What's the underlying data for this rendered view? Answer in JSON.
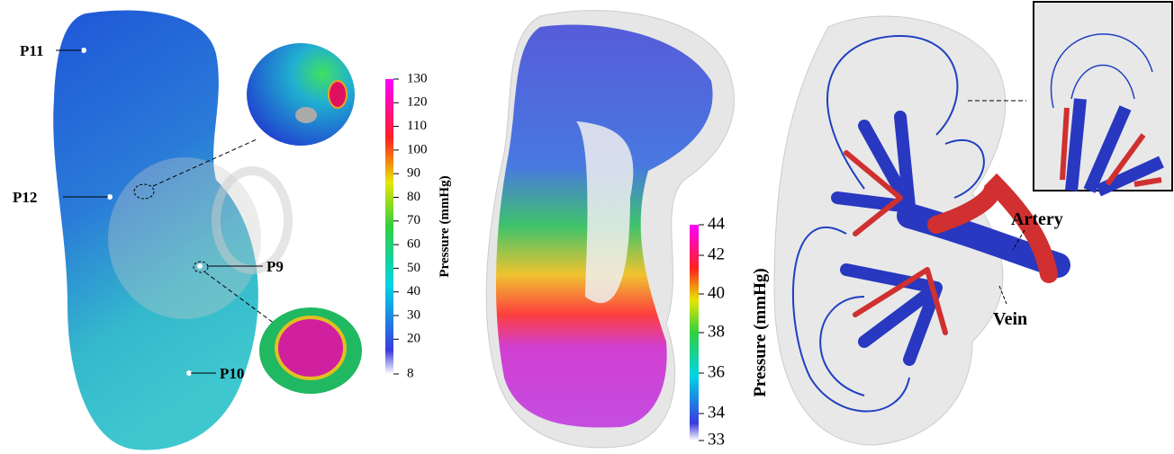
{
  "left_panel": {
    "points": [
      "P11",
      "P12",
      "P9",
      "P10"
    ]
  },
  "colorbar_1": {
    "title": "Pressure (mmHg)",
    "ticks": [
      130,
      120,
      110,
      100,
      90,
      80,
      70,
      60,
      50,
      40,
      30,
      20,
      8
    ]
  },
  "colorbar_2": {
    "title": "Pressure (mmHg)",
    "ticks": [
      44,
      42,
      40,
      38,
      36,
      34,
      33
    ]
  },
  "right_panel": {
    "labels": [
      "Artery",
      "Vein"
    ]
  }
}
